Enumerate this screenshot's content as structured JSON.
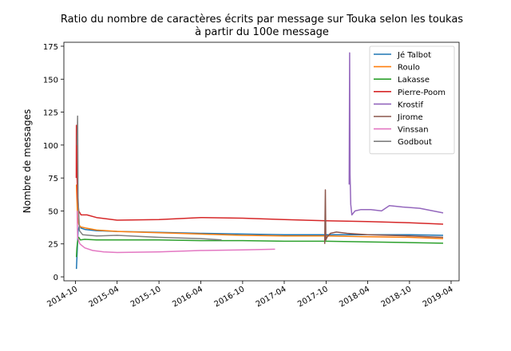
{
  "chart_data": {
    "type": "line",
    "title": "Ratio du nombre de caractères écrits par message sur Touka selon les toukas",
    "subtitle": "à partir du 100e message",
    "ylabel": "Nombre de messages",
    "xlabel": "",
    "x_ticks": [
      "2014-10",
      "2015-04",
      "2015-10",
      "2016-04",
      "2016-10",
      "2017-04",
      "2017-10",
      "2018-04",
      "2018-10",
      "2019-04"
    ],
    "y_ticks": [
      0,
      25,
      50,
      75,
      100,
      125,
      150,
      175
    ],
    "xlim": [
      "2014-08-11",
      "2019-05-06"
    ],
    "ylim": [
      -3,
      178
    ],
    "grid": false,
    "legend_position": "top-right",
    "series": [
      {
        "name": "Jé Talbot",
        "color": "#1f77b4",
        "points": [
          [
            "2014-10-05",
            6
          ],
          [
            "2014-10-08",
            18
          ],
          [
            "2014-10-12",
            35
          ],
          [
            "2014-10-18",
            39
          ],
          [
            "2014-10-25",
            37
          ],
          [
            "2014-11-10",
            36
          ],
          [
            "2015-01-01",
            35
          ],
          [
            "2015-04-01",
            34.5
          ],
          [
            "2015-10-01",
            33.8
          ],
          [
            "2016-04-01",
            33
          ],
          [
            "2016-10-01",
            32.5
          ],
          [
            "2017-04-01",
            32
          ],
          [
            "2017-10-01",
            32
          ],
          [
            "2018-04-01",
            32
          ],
          [
            "2018-10-01",
            32
          ],
          [
            "2019-02-25",
            31.5
          ]
        ]
      },
      {
        "name": "Roulo",
        "color": "#ff7f0e",
        "points": [
          [
            "2014-10-05",
            70
          ],
          [
            "2014-10-10",
            45
          ],
          [
            "2014-10-15",
            40
          ],
          [
            "2014-10-22",
            38
          ],
          [
            "2014-11-15",
            37
          ],
          [
            "2015-01-01",
            35.5
          ],
          [
            "2015-04-01",
            34.5
          ],
          [
            "2015-10-01",
            33.5
          ],
          [
            "2016-04-01",
            32.5
          ],
          [
            "2016-10-01",
            31.5
          ],
          [
            "2017-04-01",
            31
          ],
          [
            "2017-10-01",
            31
          ],
          [
            "2018-04-01",
            30.5
          ],
          [
            "2018-10-01",
            30
          ],
          [
            "2019-02-25",
            29
          ]
        ]
      },
      {
        "name": "Lakasse",
        "color": "#2ca02c",
        "points": [
          [
            "2014-10-05",
            15
          ],
          [
            "2014-10-07",
            22
          ],
          [
            "2014-10-10",
            27
          ],
          [
            "2014-10-15",
            30
          ],
          [
            "2014-10-22",
            28
          ],
          [
            "2014-11-10",
            28.5
          ],
          [
            "2015-01-01",
            28
          ],
          [
            "2015-04-01",
            28
          ],
          [
            "2015-10-01",
            28
          ],
          [
            "2016-04-01",
            27.5
          ],
          [
            "2016-10-01",
            27.5
          ],
          [
            "2017-04-01",
            27
          ],
          [
            "2017-10-01",
            27
          ],
          [
            "2018-04-01",
            26.5
          ],
          [
            "2018-10-01",
            26
          ],
          [
            "2019-02-25",
            25.5
          ]
        ]
      },
      {
        "name": "Pierre-Poom",
        "color": "#d62728",
        "points": [
          [
            "2014-10-04",
            75
          ],
          [
            "2014-10-05",
            115
          ],
          [
            "2014-10-07",
            80
          ],
          [
            "2014-10-10",
            60
          ],
          [
            "2014-10-15",
            50
          ],
          [
            "2014-10-25",
            47
          ],
          [
            "2014-11-20",
            47
          ],
          [
            "2015-01-01",
            45
          ],
          [
            "2015-04-01",
            43
          ],
          [
            "2015-10-01",
            43.5
          ],
          [
            "2016-04-01",
            45
          ],
          [
            "2016-10-01",
            44.5
          ],
          [
            "2017-04-01",
            43.5
          ],
          [
            "2017-10-01",
            42.5
          ],
          [
            "2018-04-01",
            42
          ],
          [
            "2018-10-01",
            41
          ],
          [
            "2019-02-25",
            40
          ]
        ]
      },
      {
        "name": "Krostif",
        "color": "#9467bd",
        "points": [
          [
            "2018-01-10",
            70
          ],
          [
            "2018-01-12",
            170
          ],
          [
            "2018-01-14",
            78
          ],
          [
            "2018-01-17",
            55
          ],
          [
            "2018-01-22",
            47
          ],
          [
            "2018-02-05",
            50
          ],
          [
            "2018-03-01",
            51
          ],
          [
            "2018-04-15",
            51
          ],
          [
            "2018-06-01",
            50
          ],
          [
            "2018-07-05",
            54
          ],
          [
            "2018-09-01",
            53
          ],
          [
            "2018-11-15",
            52
          ],
          [
            "2019-02-25",
            48.5
          ]
        ]
      },
      {
        "name": "Jirome",
        "color": "#8c564b",
        "points": [
          [
            "2017-09-25",
            25
          ],
          [
            "2017-09-28",
            66
          ],
          [
            "2017-09-30",
            28
          ],
          [
            "2017-10-05",
            30
          ],
          [
            "2017-10-20",
            33
          ],
          [
            "2017-11-15",
            34
          ],
          [
            "2018-01-01",
            33
          ],
          [
            "2018-04-01",
            32
          ],
          [
            "2018-10-01",
            31
          ],
          [
            "2019-02-25",
            30
          ]
        ]
      },
      {
        "name": "Vinssan",
        "color": "#e377c2",
        "points": [
          [
            "2014-10-08",
            50
          ],
          [
            "2014-10-10",
            30
          ],
          [
            "2014-10-20",
            25
          ],
          [
            "2014-11-10",
            22
          ],
          [
            "2014-12-15",
            20
          ],
          [
            "2015-02-01",
            19
          ],
          [
            "2015-04-01",
            18.5
          ],
          [
            "2015-10-01",
            19
          ],
          [
            "2016-04-01",
            20
          ],
          [
            "2016-10-01",
            20.5
          ],
          [
            "2017-02-20",
            21
          ]
        ]
      },
      {
        "name": "Godbout",
        "color": "#7f7f7f",
        "points": [
          [
            "2014-10-08",
            100
          ],
          [
            "2014-10-10",
            122
          ],
          [
            "2014-10-12",
            60
          ],
          [
            "2014-10-18",
            35
          ],
          [
            "2014-11-01",
            32
          ],
          [
            "2015-01-01",
            31
          ],
          [
            "2015-04-01",
            31.5
          ],
          [
            "2015-10-01",
            30
          ],
          [
            "2016-04-01",
            29
          ],
          [
            "2016-07-01",
            28
          ]
        ]
      }
    ]
  }
}
